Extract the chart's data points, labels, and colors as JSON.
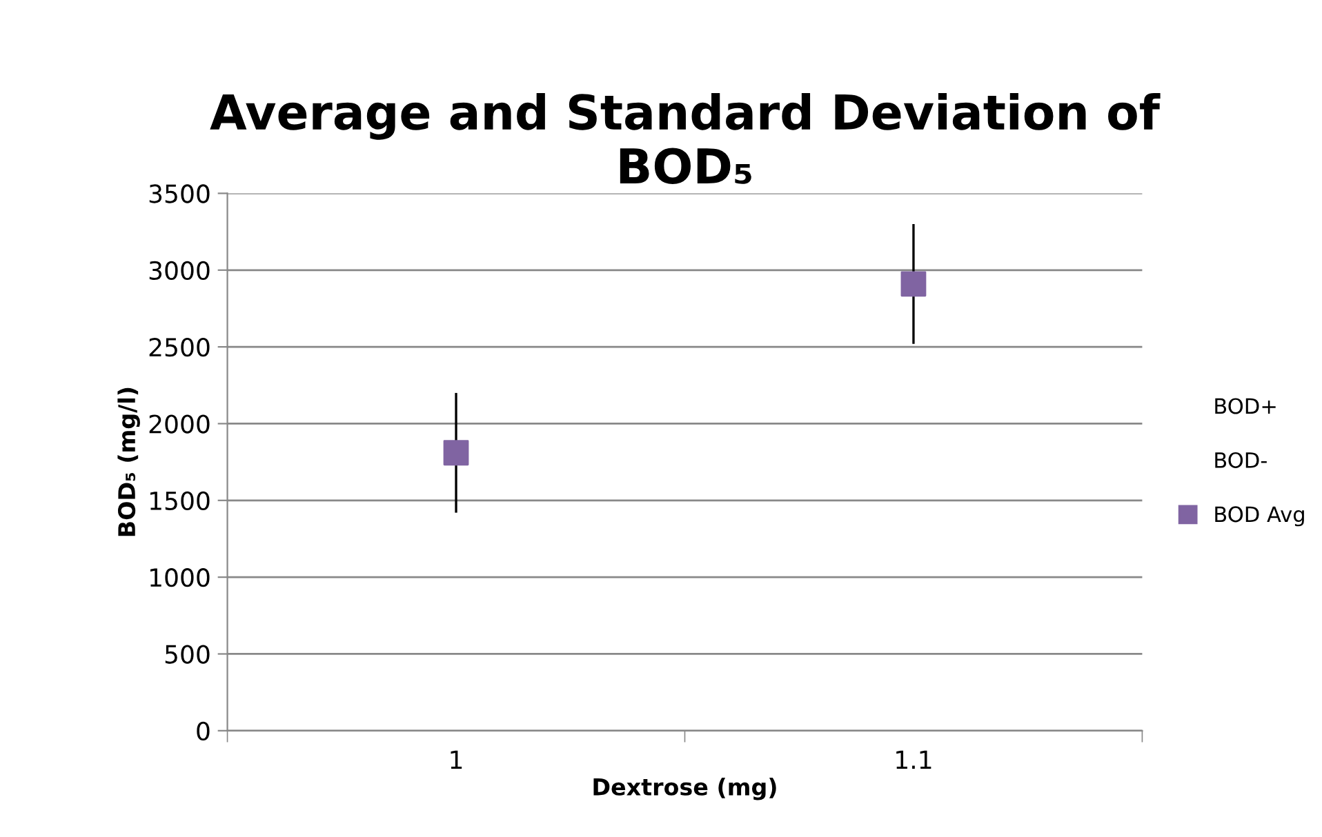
{
  "chart_data": {
    "type": "scatter",
    "title": "Average and Standard Deviation of\nBOD₅",
    "xlabel": "Dextrose (mg)",
    "ylabel": "BOD₅ (mg/l)",
    "categories": [
      "1",
      "1.1"
    ],
    "series": [
      {
        "name": "BOD Avg",
        "marker": "square",
        "color": "#8064a2",
        "values": [
          1810,
          2910
        ],
        "errors": [
          [
            1420,
            2200
          ],
          [
            2520,
            3300
          ]
        ]
      }
    ],
    "annotations": [
      "BOD+",
      "BOD-"
    ],
    "ylim": [
      0,
      3500
    ],
    "yticks": [
      0,
      500,
      1000,
      1500,
      2000,
      2500,
      3000,
      3500
    ],
    "grid": "y",
    "legend": "right"
  }
}
